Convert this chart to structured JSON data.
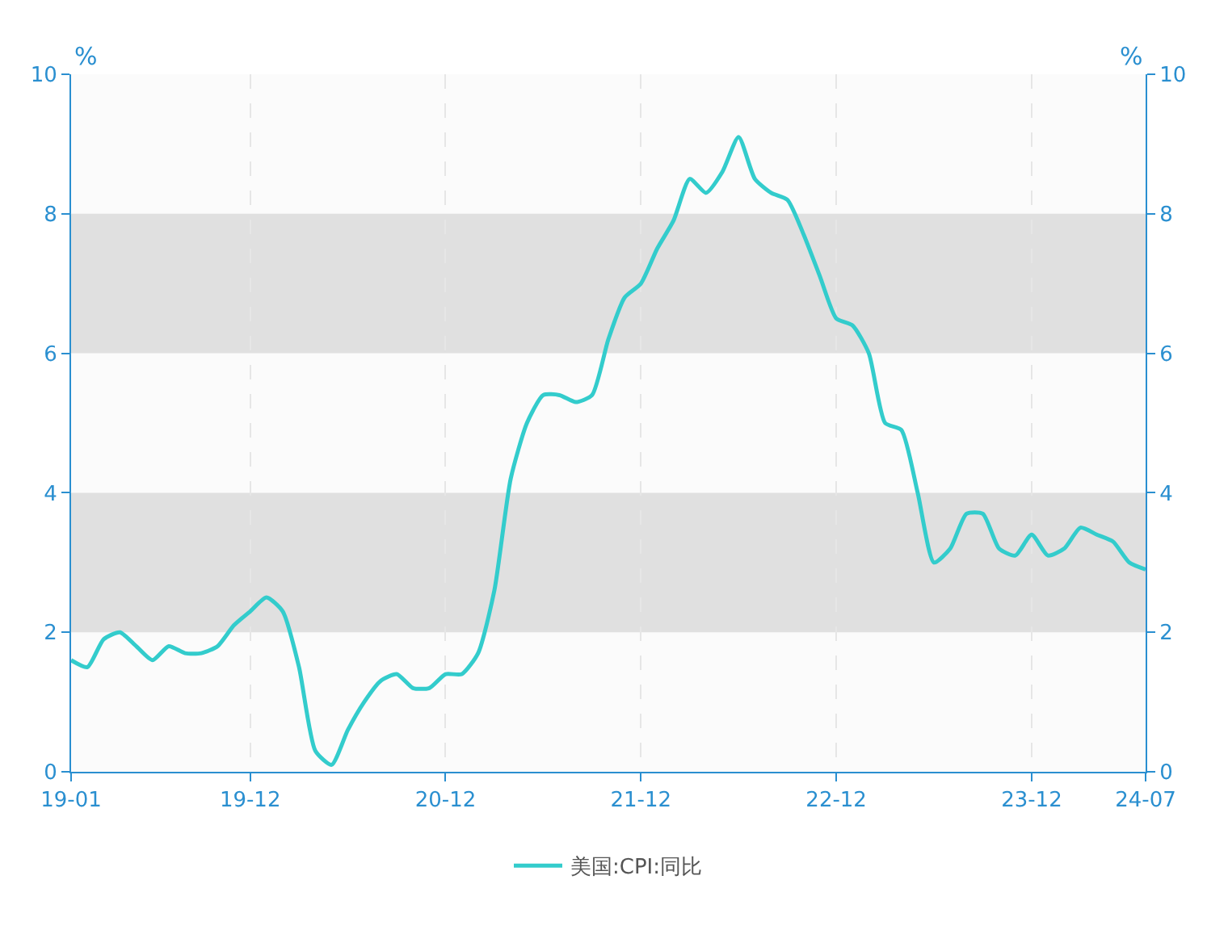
{
  "chart_data": {
    "type": "line",
    "categories": [
      "19-01",
      null,
      null,
      null,
      null,
      null,
      null,
      null,
      null,
      null,
      null,
      "19-12",
      null,
      null,
      null,
      null,
      null,
      null,
      null,
      null,
      null,
      null,
      null,
      "20-12",
      null,
      null,
      null,
      null,
      null,
      null,
      null,
      null,
      null,
      null,
      null,
      "21-12",
      null,
      null,
      null,
      null,
      null,
      null,
      null,
      null,
      null,
      null,
      null,
      "22-12",
      null,
      null,
      null,
      null,
      null,
      null,
      null,
      null,
      null,
      null,
      null,
      "23-12",
      null,
      null,
      null,
      null,
      null,
      null,
      "24-07"
    ],
    "series": [
      {
        "name": "美国:CPI:同比",
        "color": "#33cccc",
        "values": [
          1.6,
          1.5,
          1.9,
          2.0,
          1.8,
          1.6,
          1.8,
          1.7,
          1.7,
          1.8,
          2.1,
          2.3,
          2.5,
          2.3,
          1.5,
          0.3,
          0.1,
          0.6,
          1.0,
          1.3,
          1.4,
          1.2,
          1.2,
          1.4,
          1.4,
          1.7,
          2.6,
          4.2,
          5.0,
          5.4,
          5.4,
          5.3,
          5.4,
          6.2,
          6.8,
          7.0,
          7.5,
          7.9,
          8.5,
          8.3,
          8.6,
          9.1,
          8.5,
          8.3,
          8.2,
          7.7,
          7.1,
          6.5,
          6.4,
          6.0,
          5.0,
          4.9,
          4.0,
          3.0,
          3.2,
          3.7,
          3.7,
          3.2,
          3.1,
          3.4,
          3.1,
          3.2,
          3.5,
          3.4,
          3.3,
          3.0,
          2.9
        ]
      }
    ],
    "ylabel": "%",
    "y2label": "%",
    "ylim": [
      0,
      10
    ],
    "yticks": [
      0,
      2,
      4,
      6,
      8,
      10
    ],
    "y2lim": [
      0,
      10
    ],
    "y2ticks": [
      0,
      2,
      4,
      6,
      8,
      10
    ],
    "bands": [
      {
        "axis": "y",
        "from": 2,
        "to": 4,
        "color": "#e0e0e0"
      },
      {
        "axis": "y",
        "from": 6,
        "to": 8,
        "color": "#e0e0e0"
      }
    ],
    "grid": "x",
    "legend": "bottom",
    "marker": "none",
    "line_style": "solid"
  }
}
